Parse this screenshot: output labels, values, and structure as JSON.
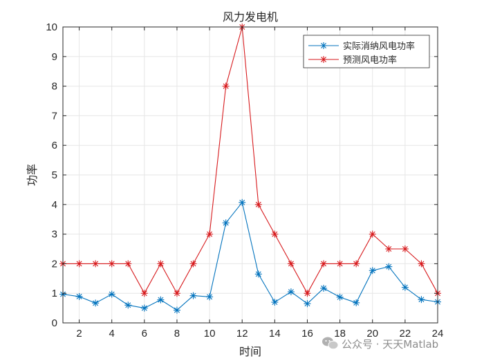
{
  "chart_data": {
    "type": "line",
    "title": "风力发电机",
    "xlabel": "时间",
    "ylabel": "功率",
    "xlim": [
      1,
      24
    ],
    "ylim": [
      0,
      10
    ],
    "xticks": [
      2,
      4,
      6,
      8,
      10,
      12,
      14,
      16,
      18,
      20,
      22,
      24
    ],
    "yticks": [
      0,
      1,
      2,
      3,
      4,
      5,
      6,
      7,
      8,
      9,
      10
    ],
    "grid": true,
    "legend_position": "top-right",
    "x": [
      1,
      2,
      3,
      4,
      5,
      6,
      7,
      8,
      9,
      10,
      11,
      12,
      13,
      14,
      15,
      16,
      17,
      18,
      19,
      20,
      21,
      22,
      23,
      24
    ],
    "series": [
      {
        "name": "实际消纳风电功率",
        "color": "#0072BD",
        "marker": "asterisk",
        "values": [
          0.97,
          0.89,
          0.67,
          0.97,
          0.6,
          0.5,
          0.78,
          0.43,
          0.92,
          0.88,
          3.38,
          4.07,
          1.65,
          0.7,
          1.05,
          0.65,
          1.17,
          0.87,
          0.68,
          1.77,
          1.9,
          1.2,
          0.79,
          0.71
        ]
      },
      {
        "name": "预测风电功率",
        "color": "#D7191C",
        "marker": "asterisk",
        "values": [
          2,
          2,
          2,
          2,
          2,
          1,
          2,
          1,
          2,
          3,
          8,
          10,
          4,
          3,
          2,
          1,
          2,
          2,
          2,
          3,
          2.5,
          2.5,
          2,
          1
        ]
      }
    ]
  },
  "watermark": {
    "icon": "wechat-icon",
    "text": "公众号 · 天天Matlab"
  }
}
